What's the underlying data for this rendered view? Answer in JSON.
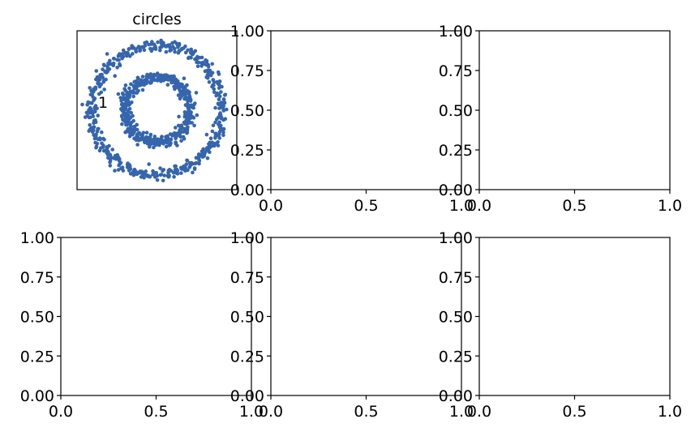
{
  "chart_data": [
    {
      "type": "scatter",
      "title": "circles",
      "annotation": "1",
      "xticks": false,
      "yticks": false,
      "color": "#3565ad",
      "xlim": [
        -1.1,
        1.1
      ],
      "ylim": [
        -1.1,
        1.1
      ],
      "series": [
        {
          "shape": "ring",
          "radius": 0.9,
          "noise": 0.045,
          "count": 500
        },
        {
          "shape": "ring",
          "radius": 0.45,
          "noise": 0.045,
          "count": 500
        }
      ]
    },
    {
      "type": "scatter",
      "xlim": [
        0,
        1
      ],
      "ylim": [
        0,
        1
      ],
      "xticks": [
        "0.0",
        "0.5",
        "1.0"
      ],
      "yticks": [
        "0.00",
        "0.25",
        "0.50",
        "0.75",
        "1.00"
      ],
      "series": []
    },
    {
      "type": "scatter",
      "xlim": [
        0,
        1
      ],
      "ylim": [
        0,
        1
      ],
      "xticks": [
        "0.0",
        "0.5",
        "1.0"
      ],
      "yticks": [
        "0.00",
        "0.25",
        "0.50",
        "0.75",
        "1.00"
      ],
      "series": []
    },
    {
      "type": "scatter",
      "xlim": [
        0,
        1
      ],
      "ylim": [
        0,
        1
      ],
      "xticks": [
        "0.0",
        "0.5",
        "1.0"
      ],
      "yticks": [
        "0.00",
        "0.25",
        "0.50",
        "0.75",
        "1.00"
      ],
      "series": []
    },
    {
      "type": "scatter",
      "xlim": [
        0,
        1
      ],
      "ylim": [
        0,
        1
      ],
      "xticks": [
        "0.0",
        "0.5",
        "1.0"
      ],
      "yticks": [
        "0.00",
        "0.25",
        "0.50",
        "0.75",
        "1.00"
      ],
      "series": []
    },
    {
      "type": "scatter",
      "xlim": [
        0,
        1
      ],
      "ylim": [
        0,
        1
      ],
      "xticks": [
        "0.0",
        "0.5",
        "1.0"
      ],
      "yticks": [
        "0.00",
        "0.25",
        "0.50",
        "0.75",
        "1.00"
      ],
      "series": []
    }
  ]
}
